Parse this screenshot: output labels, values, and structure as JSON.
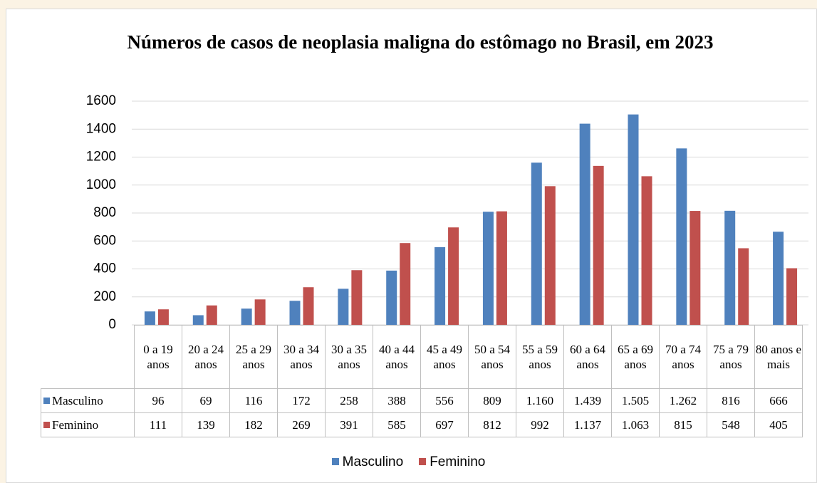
{
  "chart_data": {
    "type": "bar",
    "title": "Números de casos de neoplasia maligna do estômago no Brasil, em 2023",
    "categories": [
      "0 a 19 anos",
      "20  a 24 anos",
      "25 a 29 anos",
      "30 a 34 anos",
      "30 a 35 anos",
      "40 a 44 anos",
      "45 a 49 anos",
      "50 a 54 anos",
      "55 a 59 anos",
      "60 a 64 anos",
      "65 a 69 anos",
      "70 a 74 anos",
      "75 a 79 anos",
      "80 anos e mais"
    ],
    "series": [
      {
        "name": "Masculino",
        "color": "#4f81bd",
        "values": [
          96,
          69,
          116,
          172,
          258,
          388,
          556,
          809,
          1160,
          1439,
          1505,
          1262,
          816,
          666
        ],
        "value_labels": [
          "96",
          "69",
          "116",
          "172",
          "258",
          "388",
          "556",
          "809",
          "1.160",
          "1.439",
          "1.505",
          "1.262",
          "816",
          "666"
        ]
      },
      {
        "name": "Feminino",
        "color": "#c0504d",
        "values": [
          111,
          139,
          182,
          269,
          391,
          585,
          697,
          812,
          992,
          1137,
          1063,
          815,
          548,
          405
        ],
        "value_labels": [
          "111",
          "139",
          "182",
          "269",
          "391",
          "585",
          "697",
          "812",
          "992",
          "1.137",
          "1.063",
          "815",
          "548",
          "405"
        ]
      }
    ],
    "ylim": [
      0,
      1600
    ],
    "yticks": [
      0,
      200,
      400,
      600,
      800,
      1000,
      1200,
      1400,
      1600
    ],
    "grid": true,
    "legend": "bottom",
    "data_table": true
  }
}
